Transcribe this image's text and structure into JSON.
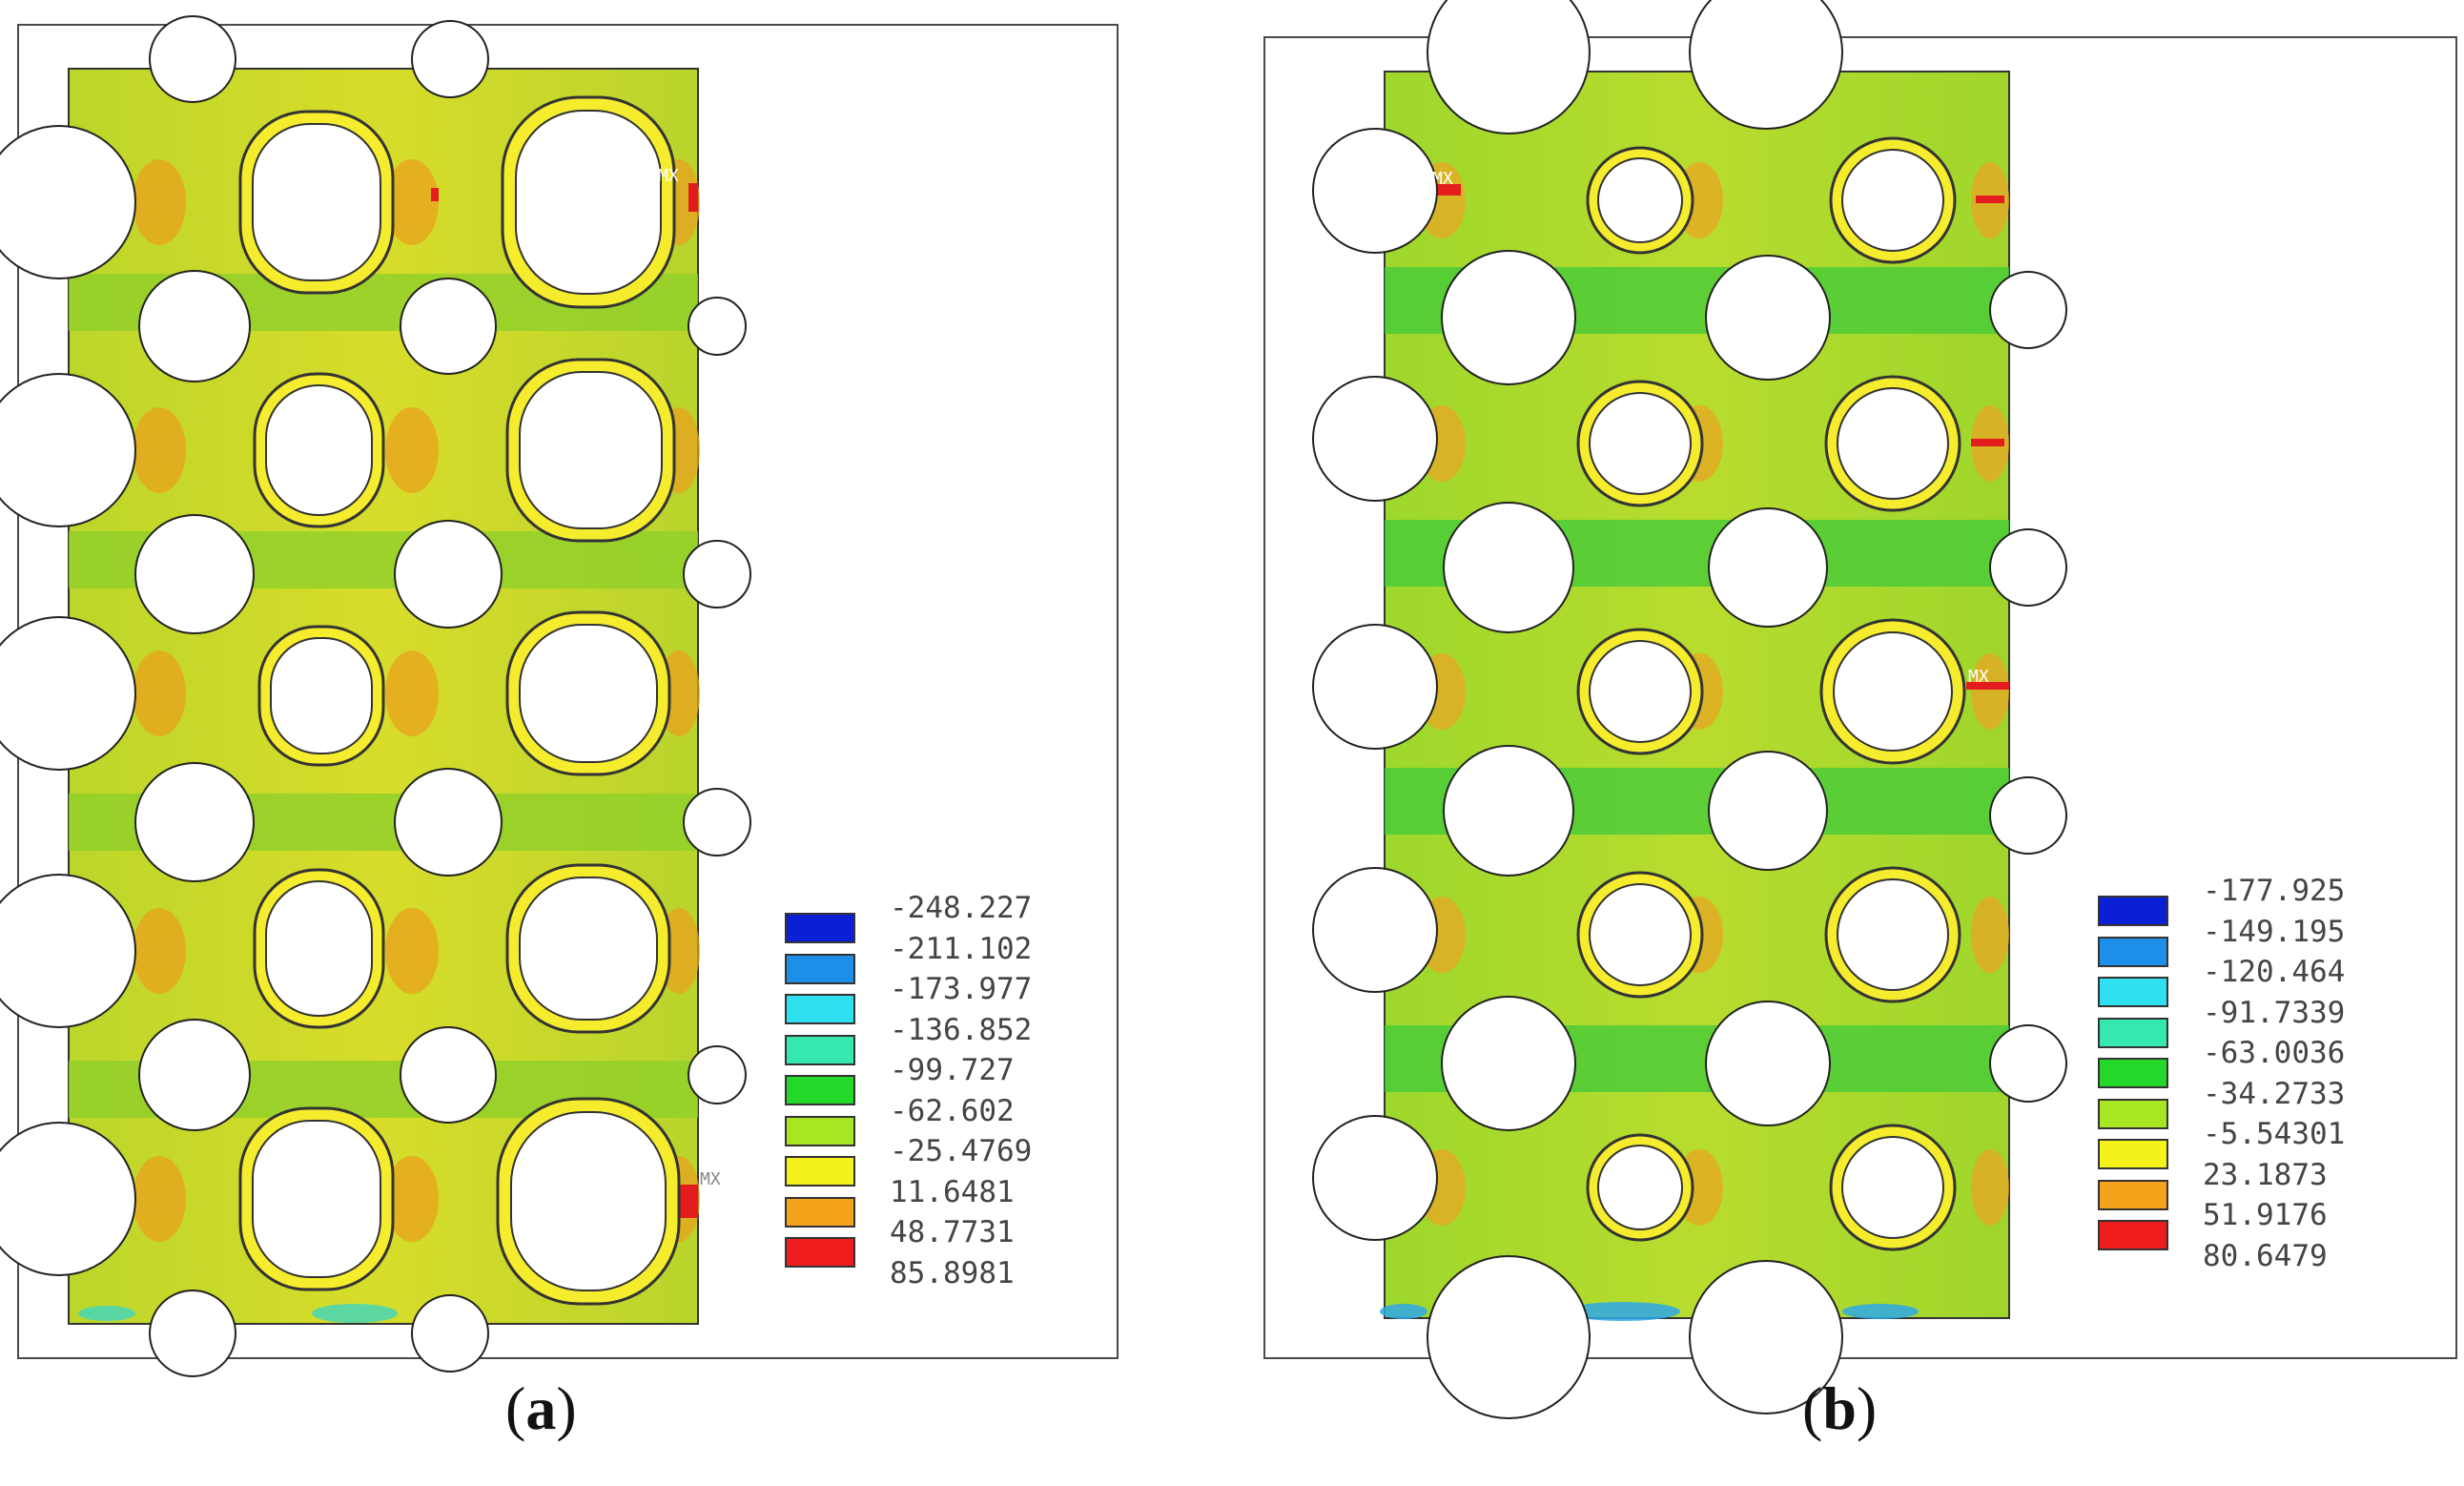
{
  "panels": [
    {
      "id": "a",
      "caption_letter": "a",
      "node_marker": "MX",
      "legend": [
        {
          "label": "-248.227",
          "color": ""
        },
        {
          "label": "-211.102",
          "color": "#0a1fd6"
        },
        {
          "label": "-173.977",
          "color": "#1e8fe8"
        },
        {
          "label": "-136.852",
          "color": "#2ee0f0"
        },
        {
          "label": "-99.727",
          "color": "#35e8b0"
        },
        {
          "label": "-62.602",
          "color": "#23d828"
        },
        {
          "label": "-25.4769",
          "color": "#a8e623"
        },
        {
          "label": "11.6481",
          "color": "#f4f21a"
        },
        {
          "label": "48.7731",
          "color": "#f4a21a"
        },
        {
          "label": "85.8981",
          "color": "#ee1c1c"
        }
      ]
    },
    {
      "id": "b",
      "caption_letter": "b",
      "node_marker": "MX",
      "legend": [
        {
          "label": "-177.925",
          "color": "#0a1fd6"
        },
        {
          "label": "-149.195",
          "color": "#1e8fe8"
        },
        {
          "label": "-120.464",
          "color": "#2ee0f0"
        },
        {
          "label": "-91.7339",
          "color": "#35e8b0"
        },
        {
          "label": "-63.0036",
          "color": "#23d828"
        },
        {
          "label": "-34.2733",
          "color": "#a8e623"
        },
        {
          "label": "-5.54301",
          "color": "#f4f21a"
        },
        {
          "label": "23.1873",
          "color": "#f4a21a"
        },
        {
          "label": "51.9176",
          "color": "#ee1c1c"
        },
        {
          "label": "80.6479",
          "color": ""
        }
      ]
    }
  ]
}
